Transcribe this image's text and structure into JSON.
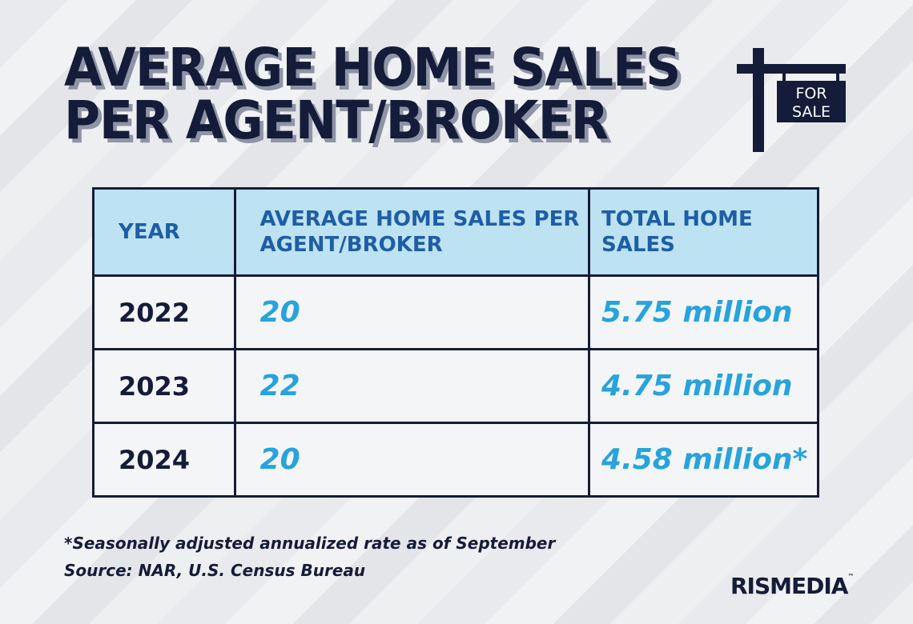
{
  "title": {
    "line1": "AVERAGE HOME SALES",
    "line2": "PER AGENT/BROKER"
  },
  "sign": {
    "line1": "FOR",
    "line2": "SALE"
  },
  "chart_data": {
    "type": "table",
    "columns": [
      "YEAR",
      "AVERAGE HOME SALES PER AGENT/BROKER",
      "TOTAL HOME SALES"
    ],
    "rows": [
      {
        "year": "2022",
        "avg": "20",
        "total": "5.75 million"
      },
      {
        "year": "2023",
        "avg": "22",
        "total": "4.75 million"
      },
      {
        "year": "2024",
        "avg": "20",
        "total": "4.58 million*"
      }
    ]
  },
  "notes": {
    "footnote": "*Seasonally adjusted annualized rate as of September",
    "source": "Source: NAR, U.S. Census Bureau"
  },
  "logo": {
    "text": "RISMEDIA",
    "tm": "™"
  },
  "colors": {
    "navy": "#141c3a",
    "header_bg": "#bde2f1",
    "header_text": "#1d5ea6",
    "value": "#27a3dd"
  }
}
